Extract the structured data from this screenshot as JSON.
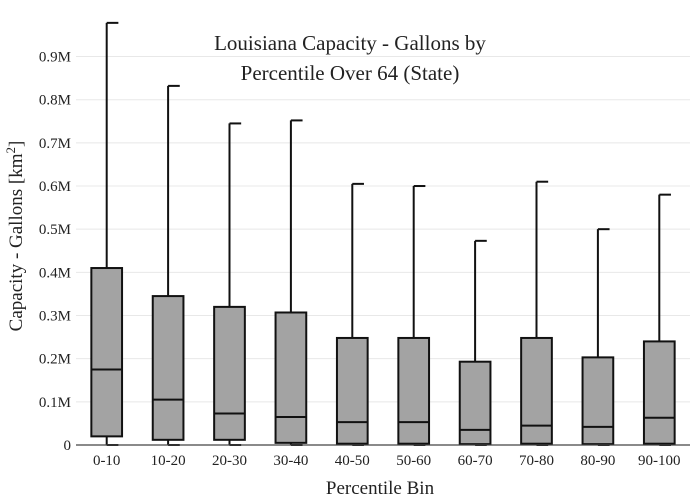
{
  "chart_data": {
    "type": "box",
    "title_line1": "Louisiana Capacity - Gallons by",
    "title_line2": "Percentile Over 64 (State)",
    "xlabel": "Percentile Bin",
    "ylabel_main": "Capacity - Gallons  [km",
    "ylabel_sup": "2",
    "ylabel_end": "]",
    "ylim": [
      0,
      980000
    ],
    "yticks": [
      0,
      100000,
      200000,
      300000,
      400000,
      500000,
      600000,
      700000,
      800000,
      900000
    ],
    "ytick_labels": [
      "0",
      "0.1M",
      "0.2M",
      "0.3M",
      "0.4M",
      "0.5M",
      "0.6M",
      "0.7M",
      "0.8M",
      "0.9M"
    ],
    "grid": true,
    "categories": [
      "0-10",
      "10-20",
      "20-30",
      "30-40",
      "40-50",
      "50-60",
      "60-70",
      "70-80",
      "80-90",
      "90-100"
    ],
    "boxes": [
      {
        "min": 0,
        "q1": 20000,
        "median": 175000,
        "q3": 410000,
        "max": 978000
      },
      {
        "min": 0,
        "q1": 12000,
        "median": 105000,
        "q3": 345000,
        "max": 832000
      },
      {
        "min": 0,
        "q1": 12000,
        "median": 73000,
        "q3": 320000,
        "max": 745000
      },
      {
        "min": 0,
        "q1": 5000,
        "median": 65000,
        "q3": 307000,
        "max": 752000
      },
      {
        "min": 0,
        "q1": 3000,
        "median": 53000,
        "q3": 248000,
        "max": 605000
      },
      {
        "min": 0,
        "q1": 3000,
        "median": 53000,
        "q3": 248000,
        "max": 600000
      },
      {
        "min": 0,
        "q1": 2000,
        "median": 35000,
        "q3": 193000,
        "max": 473000
      },
      {
        "min": 0,
        "q1": 3000,
        "median": 45000,
        "q3": 248000,
        "max": 610000
      },
      {
        "min": 0,
        "q1": 2000,
        "median": 42000,
        "q3": 203000,
        "max": 500000
      },
      {
        "min": 0,
        "q1": 3000,
        "median": 63000,
        "q3": 240000,
        "max": 580000
      }
    ],
    "box_color": "#a3a3a3",
    "line_color": "#111111"
  }
}
